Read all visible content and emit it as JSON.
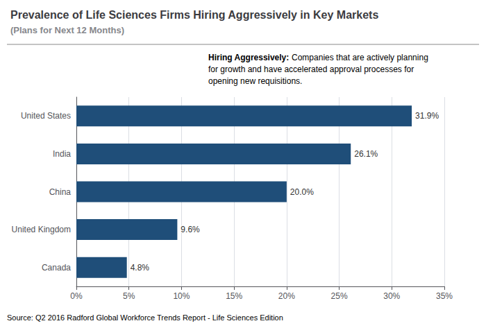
{
  "chart_data": {
    "type": "bar",
    "orientation": "horizontal",
    "title": "Prevalence of Life Sciences Firms Hiring Aggressively in Key Markets",
    "subtitle": "(Plans for Next 12 Months)",
    "categories": [
      "Canada",
      "United Kingdom",
      "China",
      "India",
      "United States"
    ],
    "values": [
      4.8,
      9.6,
      20.0,
      26.1,
      31.9
    ],
    "value_labels": [
      "4.8%",
      "9.6%",
      "20.0%",
      "26.1%",
      "31.9%"
    ],
    "data_labels": true,
    "color": "#1F4E79",
    "xlim": [
      0,
      35
    ],
    "xticks": [
      {
        "value": 0,
        "label": "0%"
      },
      {
        "value": 5,
        "label": "5%"
      },
      {
        "value": 10,
        "label": "10%"
      },
      {
        "value": 15,
        "label": "15%"
      },
      {
        "value": 20,
        "label": "20%"
      },
      {
        "value": 25,
        "label": "25%"
      },
      {
        "value": 30,
        "label": "30%"
      },
      {
        "value": 35,
        "label": "35%"
      }
    ],
    "grid": true,
    "annotations": [
      [
        "Hiring Aggressively:",
        " Companies that are actively planning"
      ],
      [
        "for growth and have accelerated approval processes for"
      ],
      [
        "opening new requisitions."
      ]
    ],
    "source": "Source: Q2 2016 Radford Global Workforce Trends Report - Life Sciences Edition"
  }
}
